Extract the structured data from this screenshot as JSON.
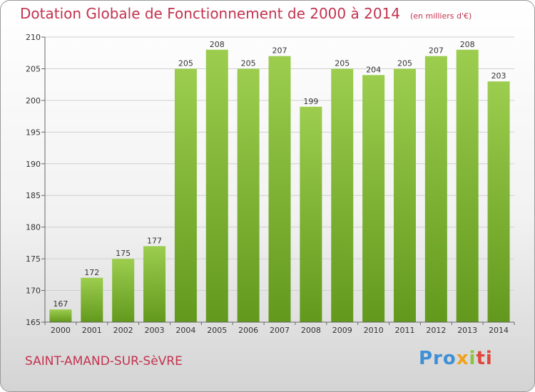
{
  "title": "Dotation Globale de Fonctionnement de 2000 à 2014",
  "unit": "(en milliers d'€)",
  "location": "SAINT-AMAND-SUR-SèVRE",
  "brand": {
    "p1": "Pro",
    "p2": "x",
    "p3": "i",
    "p4": "ti"
  },
  "colors": {
    "bar_light": "#9ccd4e",
    "bar_dark": "#62991d",
    "title": "#c2334f",
    "grid": "#d0d0d0"
  },
  "chart_data": {
    "type": "bar",
    "categories": [
      "2000",
      "2001",
      "2002",
      "2003",
      "2004",
      "2005",
      "2006",
      "2007",
      "2008",
      "2009",
      "2010",
      "2011",
      "2012",
      "2013",
      "2014"
    ],
    "values": [
      167,
      172,
      175,
      177,
      205,
      208,
      205,
      207,
      199,
      205,
      204,
      205,
      207,
      208,
      203
    ],
    "ylim": [
      165,
      210
    ],
    "yticks": [
      165,
      170,
      175,
      180,
      185,
      190,
      195,
      200,
      205,
      210
    ],
    "title": "Dotation Globale de Fonctionnement de 2000 à 2014",
    "xlabel": "",
    "ylabel": "",
    "grid": true
  }
}
